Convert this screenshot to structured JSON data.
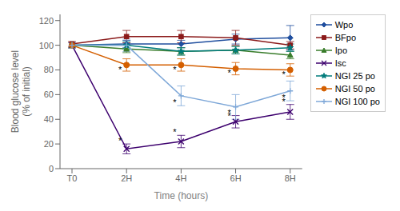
{
  "chart_data": {
    "type": "line",
    "categories": [
      "T0",
      "2H",
      "4H",
      "6H",
      "8H"
    ],
    "x_label": "Time (hours)",
    "y_label": "Blood glucose level\n(% of initial)",
    "ylim": [
      0,
      125
    ],
    "yticks": [
      0,
      20,
      40,
      60,
      80,
      100,
      120
    ],
    "grid": false,
    "legend": "right",
    "series": [
      {
        "name": "Wpo",
        "color": "#1f4e9e",
        "marker": "diamond",
        "line_style": "solid",
        "values": [
          100,
          101,
          101,
          105,
          106
        ],
        "errors": [
          2,
          3,
          3,
          4,
          10
        ]
      },
      {
        "name": "BFpo",
        "color": "#8b1a1a",
        "marker": "square",
        "line_style": "solid",
        "values": [
          101,
          107,
          107,
          106,
          100
        ],
        "errors": [
          2,
          5,
          5,
          6,
          3
        ]
      },
      {
        "name": "Ipo",
        "color": "#3a7d2c",
        "marker": "triangle",
        "line_style": "solid",
        "values": [
          100,
          97,
          95,
          96,
          92
        ],
        "errors": [
          2,
          3,
          3,
          3,
          3
        ]
      },
      {
        "name": "Isc",
        "color": "#3d006e",
        "marker": "x",
        "line_style": "solid",
        "values": [
          100,
          16,
          22,
          38,
          46
        ],
        "errors": [
          2,
          4,
          5,
          5,
          6
        ]
      },
      {
        "name": "NGI 25 po",
        "color": "#007b7b",
        "marker": "star",
        "line_style": "solid",
        "values": [
          100,
          100,
          95,
          96,
          98
        ],
        "errors": [
          2,
          3,
          3,
          3,
          3
        ]
      },
      {
        "name": "NGI 50 po",
        "color": "#d45f00",
        "marker": "circle",
        "line_style": "solid",
        "values": [
          100,
          84,
          84,
          81,
          80
        ],
        "errors": [
          2,
          5,
          5,
          5,
          5
        ]
      },
      {
        "name": "NGI 100 po",
        "color": "#7fa8d8",
        "marker": "plus",
        "line_style": "solid",
        "values": [
          100,
          100,
          59,
          50,
          63
        ],
        "errors": [
          2,
          5,
          8,
          10,
          8
        ]
      }
    ],
    "annotations": [
      {
        "x": "2H",
        "y": 20,
        "text": "*"
      },
      {
        "x": "4H",
        "y": 27,
        "text": "*"
      },
      {
        "x": "6H",
        "y": 43,
        "text": "*"
      },
      {
        "x": "8H",
        "y": 52,
        "text": "*"
      },
      {
        "x": "2H",
        "y": 78,
        "text": "*"
      },
      {
        "x": "4H",
        "y": 78,
        "text": "*"
      },
      {
        "x": "6H",
        "y": 75,
        "text": "*"
      },
      {
        "x": "8H",
        "y": 74,
        "text": "*"
      },
      {
        "x": "4H",
        "y": 51,
        "text": "*"
      },
      {
        "x": "6H",
        "y": 40,
        "text": "*"
      },
      {
        "x": "8H",
        "y": 55,
        "text": "*"
      }
    ]
  }
}
